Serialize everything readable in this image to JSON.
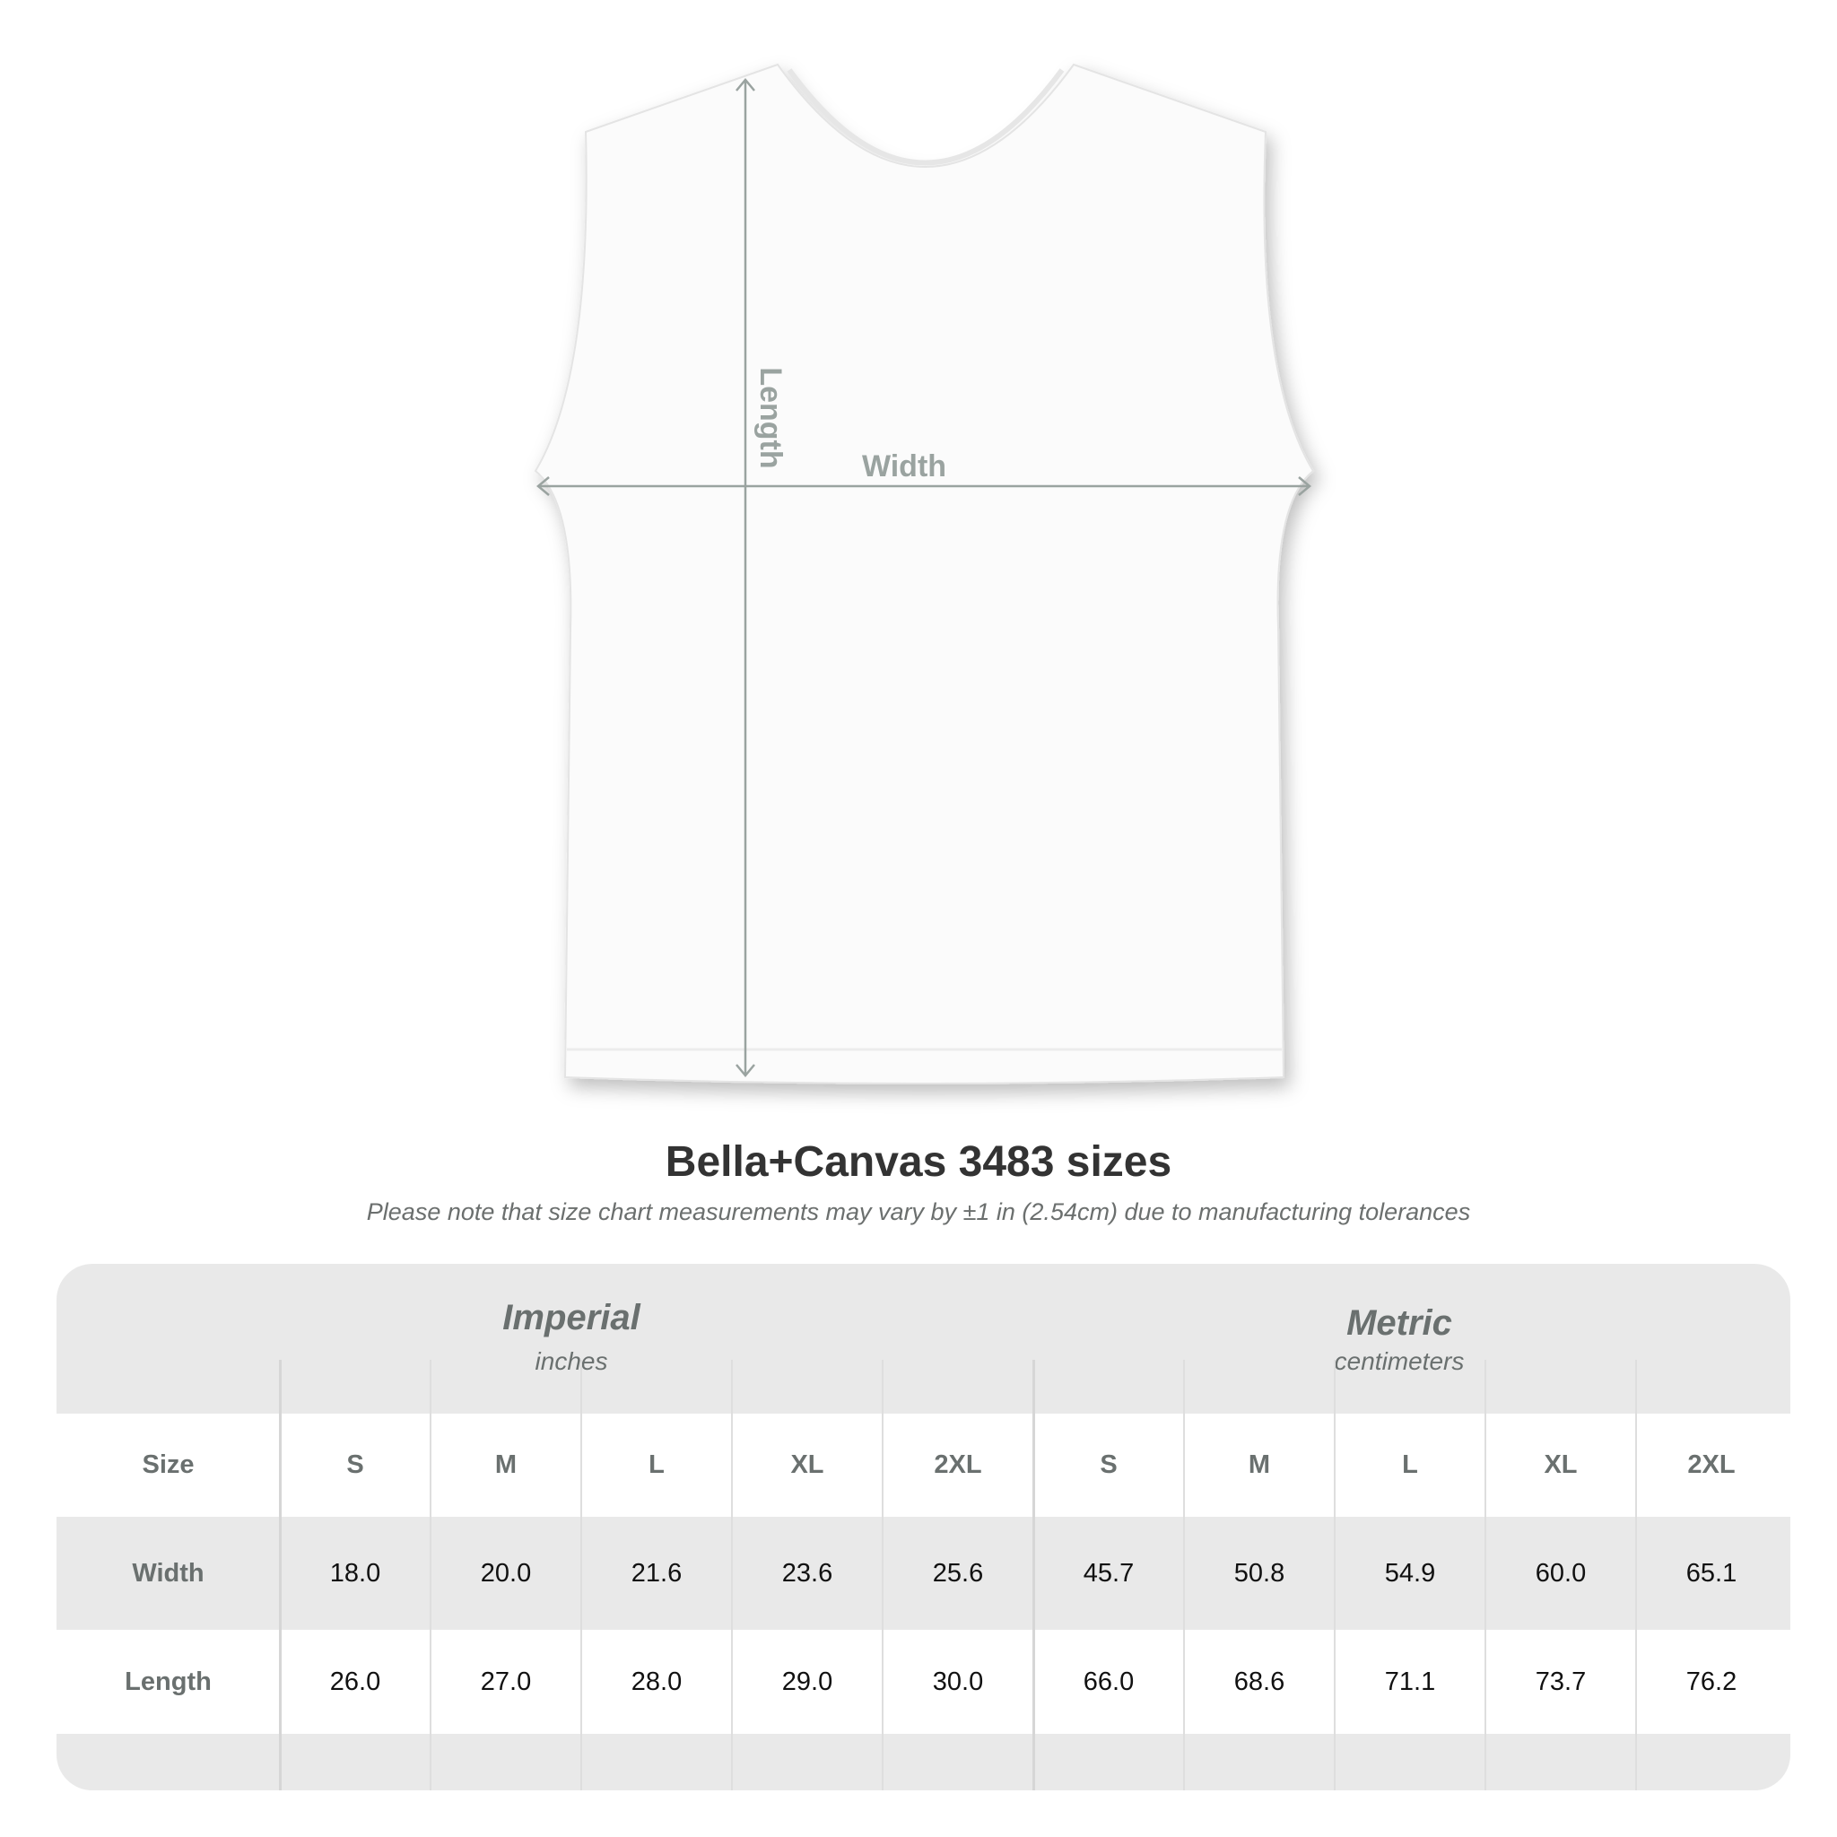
{
  "diagram": {
    "length_label": "Length",
    "width_label": "Width"
  },
  "title": "Bella+Canvas 3483 sizes",
  "note": "Please note that size chart measurements may vary by ±1 in (2.54cm) due to manufacturing tolerances",
  "table": {
    "groups": [
      {
        "name": "Imperial",
        "unit": "inches"
      },
      {
        "name": "Metric",
        "unit": "centimeters"
      }
    ],
    "size_label": "Size",
    "sizes": [
      "S",
      "M",
      "L",
      "XL",
      "2XL",
      "S",
      "M",
      "L",
      "XL",
      "2XL"
    ],
    "rows": [
      {
        "label": "Width",
        "values": [
          "18.0",
          "20.0",
          "21.6",
          "23.6",
          "25.6",
          "45.7",
          "50.8",
          "54.9",
          "60.0",
          "65.1"
        ]
      },
      {
        "label": "Length",
        "values": [
          "26.0",
          "27.0",
          "28.0",
          "29.0",
          "30.0",
          "66.0",
          "68.6",
          "71.1",
          "73.7",
          "76.2"
        ]
      }
    ]
  },
  "colors": {
    "arrow": "#9aa3a0",
    "band": "#e9e9e9",
    "header_text": "#6a706f"
  }
}
